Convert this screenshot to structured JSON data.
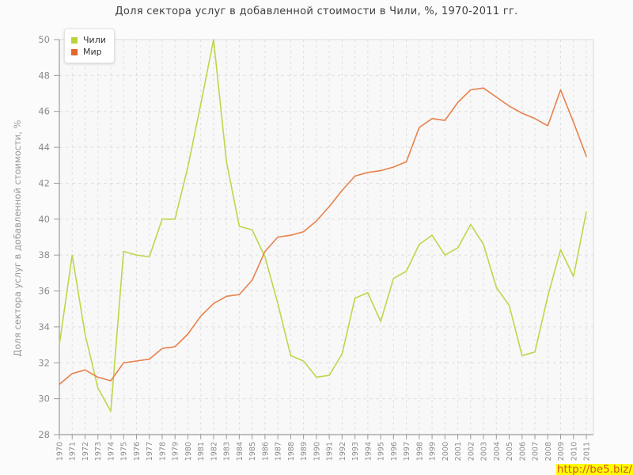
{
  "title": "Доля сектора услуг в добавленной стоимости в Чили, %, 1970-2011 гг.",
  "legend": {
    "items": [
      {
        "label": "Чили",
        "color": "#b9d33c"
      },
      {
        "label": "Мир",
        "color": "#e2672e"
      }
    ]
  },
  "y_axis": {
    "label": "Доля сектора услуг в добавленной стоимости, %",
    "ticks": [
      28,
      30,
      32,
      34,
      36,
      38,
      40,
      42,
      44,
      46,
      48,
      50
    ]
  },
  "watermark": "http://be5.biz/",
  "colors": {
    "grid": "#dedede",
    "axis": "#9b9b9b",
    "tick_label": "#8c8c8c",
    "border": "#dcdcdc",
    "chile_line": "#bed649",
    "world_line": "#e8814b"
  },
  "chart_data": {
    "type": "line",
    "title": "Доля сектора услуг в добавленной стоимости в Чили, %, 1970-2011 гг.",
    "xlabel": "",
    "ylabel": "Доля сектора услуг в добавленной стоимости, %",
    "ylim": [
      28,
      50
    ],
    "grid": true,
    "legend_position": "top-left",
    "x": [
      1970,
      1971,
      1972,
      1973,
      1974,
      1975,
      1976,
      1977,
      1978,
      1979,
      1980,
      1981,
      1982,
      1983,
      1984,
      1985,
      1986,
      1987,
      1988,
      1989,
      1990,
      1991,
      1992,
      1993,
      1994,
      1995,
      1996,
      1997,
      1998,
      1999,
      2000,
      2001,
      2002,
      2003,
      2004,
      2005,
      2006,
      2007,
      2008,
      2009,
      2010,
      2011
    ],
    "series": [
      {
        "name": "Чили",
        "color": "#bed649",
        "values": [
          33.0,
          38.0,
          33.6,
          30.6,
          29.3,
          38.2,
          38.0,
          37.9,
          40.0,
          40.0,
          42.9,
          46.4,
          50.0,
          43.2,
          39.6,
          39.4,
          37.9,
          35.3,
          32.4,
          32.1,
          31.2,
          31.3,
          32.5,
          35.6,
          35.9,
          34.3,
          36.7,
          37.1,
          38.6,
          39.1,
          38.0,
          38.4,
          39.7,
          38.6,
          36.2,
          35.2,
          32.4,
          32.6,
          35.7,
          38.3,
          36.8,
          40.4
        ]
      },
      {
        "name": "Мир",
        "color": "#e8814b",
        "values": [
          30.8,
          31.4,
          31.6,
          31.2,
          31.0,
          32.0,
          32.1,
          32.2,
          32.8,
          32.9,
          33.6,
          34.6,
          35.3,
          35.7,
          35.8,
          36.6,
          38.2,
          39.0,
          39.1,
          39.3,
          39.9,
          40.7,
          41.6,
          42.4,
          42.6,
          42.7,
          42.9,
          43.2,
          45.1,
          45.6,
          45.5,
          46.5,
          47.2,
          47.3,
          46.8,
          46.3,
          45.9,
          45.6,
          45.2,
          47.2,
          45.4,
          43.5
        ]
      }
    ]
  }
}
